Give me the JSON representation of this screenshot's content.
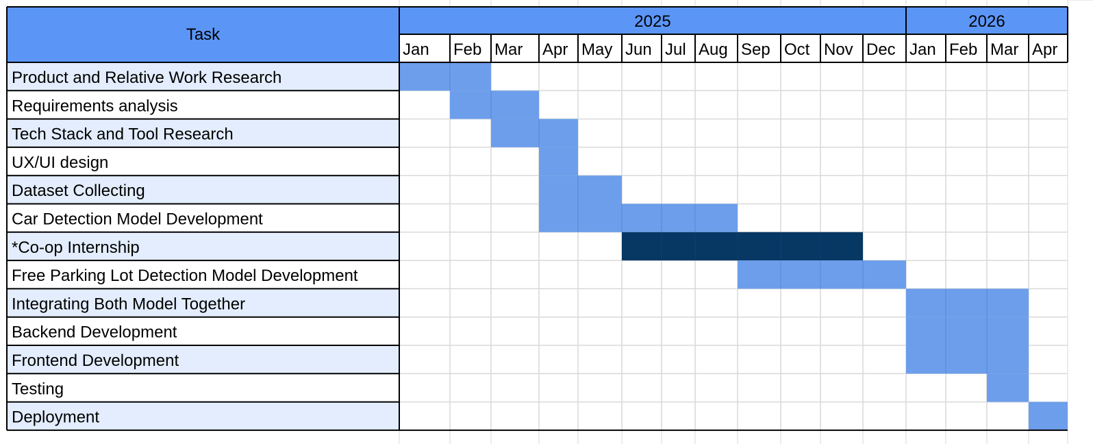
{
  "chart_data": {
    "type": "table",
    "task_header": "Task",
    "years": [
      {
        "label": "2025",
        "span": 12
      },
      {
        "label": "2026",
        "span": 4
      }
    ],
    "months": [
      "Jan",
      "Feb",
      "Mar",
      "Apr",
      "May",
      "Jun",
      "Jul",
      "Aug",
      "Sep",
      "Oct",
      "Nov",
      "Dec",
      "Jan",
      "Feb",
      "Mar",
      "Apr"
    ],
    "tasks": [
      {
        "name": "Product and Relative Work Research",
        "start": 0,
        "end": 1,
        "kind": "normal"
      },
      {
        "name": "Requirements analysis",
        "start": 1,
        "end": 2,
        "kind": "normal"
      },
      {
        "name": "Tech Stack and Tool Research",
        "start": 2,
        "end": 3,
        "kind": "normal"
      },
      {
        "name": "UX/UI design",
        "start": 3,
        "end": 3,
        "kind": "normal"
      },
      {
        "name": "Dataset Collecting",
        "start": 3,
        "end": 4,
        "kind": "normal"
      },
      {
        "name": "Car Detection Model Development",
        "start": 3,
        "end": 7,
        "kind": "normal"
      },
      {
        "name": "*Co-op Internship",
        "start": 5,
        "end": 10,
        "kind": "internship"
      },
      {
        "name": "Free Parking Lot Detection Model Development",
        "start": 8,
        "end": 11,
        "kind": "normal"
      },
      {
        "name": "Integrating Both Model Together",
        "start": 12,
        "end": 14,
        "kind": "normal"
      },
      {
        "name": "Backend Development",
        "start": 12,
        "end": 14,
        "kind": "normal"
      },
      {
        "name": "Frontend Development",
        "start": 12,
        "end": 14,
        "kind": "normal"
      },
      {
        "name": "Testing",
        "start": 14,
        "end": 14,
        "kind": "normal"
      },
      {
        "name": "Deployment",
        "start": 15,
        "end": 15,
        "kind": "normal"
      }
    ],
    "colors": {
      "header_bg": "#5b96f7",
      "task_alt_bg": "#e3edfd",
      "bar": "#6d9eeb",
      "bar_internship": "#073763",
      "grid": "#d9d9d9",
      "border": "#000000"
    }
  }
}
